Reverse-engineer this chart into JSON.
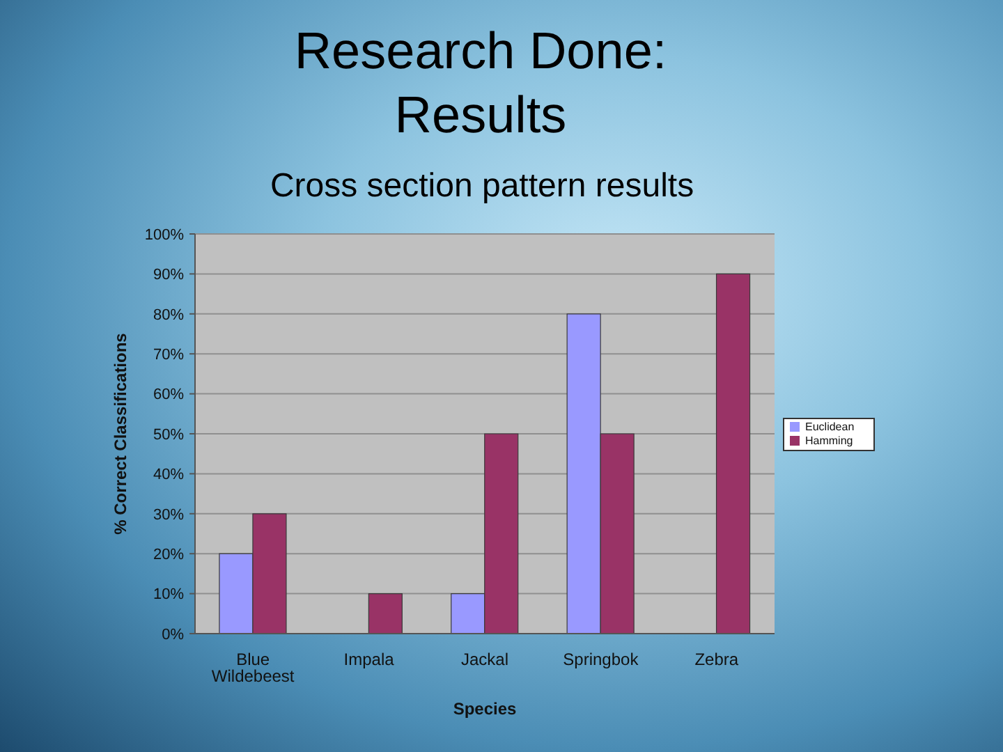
{
  "chart_data": {
    "type": "bar",
    "title": "Research Done: Results",
    "subtitle": "Cross section pattern results",
    "xlabel": "Species",
    "ylabel": "% Correct Classifications",
    "categories": [
      "Blue Wildebeest",
      "Impala",
      "Jackal",
      "Springbok",
      "Zebra"
    ],
    "series": [
      {
        "name": "Euclidean",
        "color": "#9999ff",
        "values": [
          20,
          0,
          10,
          80,
          0
        ]
      },
      {
        "name": "Hamming",
        "color": "#993366",
        "values": [
          30,
          10,
          50,
          50,
          90
        ]
      }
    ],
    "ylim": [
      0,
      100
    ],
    "yticks": [
      {
        "value": 0,
        "label": "0%"
      },
      {
        "value": 10,
        "label": "10%"
      },
      {
        "value": 20,
        "label": "20%"
      },
      {
        "value": 30,
        "label": "30%"
      },
      {
        "value": 40,
        "label": "40%"
      },
      {
        "value": 50,
        "label": "50%"
      },
      {
        "value": 60,
        "label": "60%"
      },
      {
        "value": 70,
        "label": "70%"
      },
      {
        "value": 80,
        "label": "80%"
      },
      {
        "value": 90,
        "label": "90%"
      },
      {
        "value": 100,
        "label": "100%"
      }
    ],
    "grid": "y",
    "legend": "right"
  }
}
